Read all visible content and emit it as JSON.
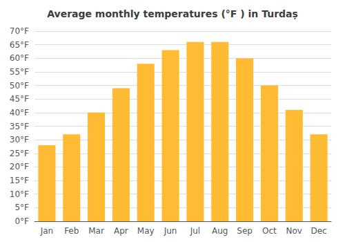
{
  "chart_data": {
    "type": "bar",
    "title": "Average monthly temperatures (°F ) in Turdaș",
    "categories": [
      "Jan",
      "Feb",
      "Mar",
      "Apr",
      "May",
      "Jun",
      "Jul",
      "Aug",
      "Sep",
      "Oct",
      "Nov",
      "Dec"
    ],
    "values": [
      28,
      32,
      40,
      49,
      58,
      63,
      66,
      66,
      60,
      50,
      41,
      32
    ],
    "color": "#FFBB33",
    "ylim": [
      0,
      70
    ],
    "yticks": [
      {
        "value": 0,
        "label": "0°F"
      },
      {
        "value": 5,
        "label": "5°F"
      },
      {
        "value": 10,
        "label": "10°F"
      },
      {
        "value": 15,
        "label": "15°F"
      },
      {
        "value": 20,
        "label": "20°F"
      },
      {
        "value": 25,
        "label": "25°F"
      },
      {
        "value": 30,
        "label": "30°F"
      },
      {
        "value": 35,
        "label": "35°F"
      },
      {
        "value": 40,
        "label": "40°F"
      },
      {
        "value": 45,
        "label": "45°F"
      },
      {
        "value": 50,
        "label": "50°F"
      },
      {
        "value": 55,
        "label": "55°F"
      },
      {
        "value": 60,
        "label": "60°F"
      },
      {
        "value": 65,
        "label": "65°F"
      },
      {
        "value": 70,
        "label": "70°F"
      }
    ],
    "grid": true
  }
}
